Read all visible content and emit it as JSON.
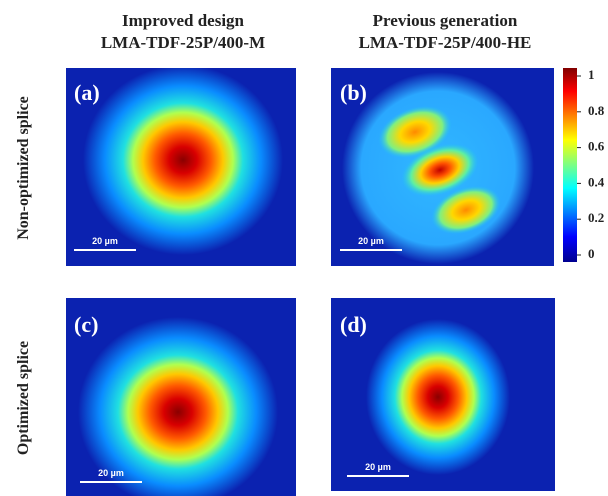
{
  "columns": [
    {
      "title": "Improved design",
      "subtitle": "LMA-TDF-25P/400-M"
    },
    {
      "title": "Previous generation",
      "subtitle": "LMA-TDF-25P/400-HE"
    }
  ],
  "rows": [
    "Non-optimized splice",
    "Optimized splice"
  ],
  "panels": [
    {
      "label": "(a)",
      "scale_bar": "20 µm"
    },
    {
      "label": "(b)",
      "scale_bar": "20 µm"
    },
    {
      "label": "(c)",
      "scale_bar": "20 µm"
    },
    {
      "label": "(d)",
      "scale_bar": "20 µm"
    }
  ],
  "colorbar": {
    "ticks": [
      0,
      0.2,
      0.4,
      0.6,
      0.8,
      1
    ]
  }
}
